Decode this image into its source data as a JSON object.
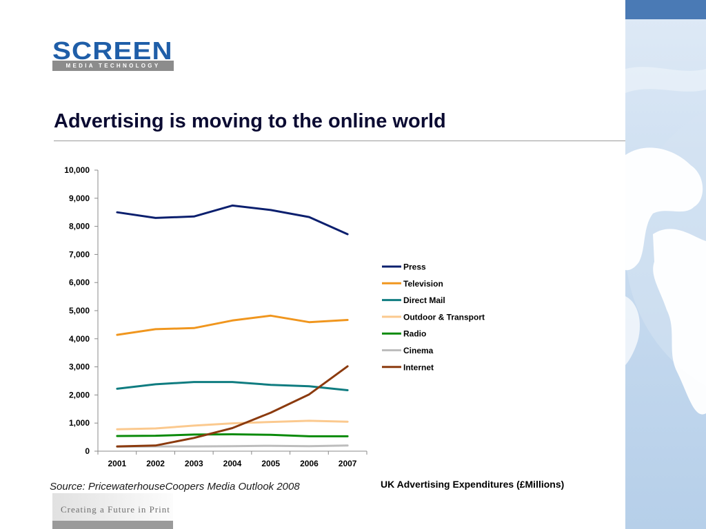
{
  "logo": {
    "brand": "SCREEN",
    "subtitle": "MEDIA TECHNOLOGY"
  },
  "page": {
    "title": "Advertising is moving to the online world",
    "source": "Source: PricewaterhouseCoopers Media Outlook 2008",
    "caption": "UK Advertising Expenditures (£Millions)",
    "tagline": "Creating a Future in Print"
  },
  "colors": {
    "brand": "#1f5ea8",
    "title": "#0b0b32",
    "panel_accent": "#4a7ab5"
  },
  "chart_data": {
    "type": "line",
    "x": [
      "2001",
      "2002",
      "2003",
      "2004",
      "2005",
      "2006",
      "2007"
    ],
    "ylim": [
      0,
      10000
    ],
    "yticks": [
      "0",
      "1,000",
      "2,000",
      "3,000",
      "4,000",
      "5,000",
      "6,000",
      "7,000",
      "8,000",
      "9,000",
      "10,000"
    ],
    "grid": false,
    "legend": "right",
    "series": [
      {
        "name": "Press",
        "color": "#0b1f6e",
        "values": [
          8500,
          8300,
          8350,
          8740,
          8580,
          8330,
          7720
        ]
      },
      {
        "name": "Television",
        "color": "#f0961e",
        "values": [
          4140,
          4340,
          4380,
          4650,
          4820,
          4590,
          4670
        ]
      },
      {
        "name": "Direct Mail",
        "color": "#0f7c80",
        "values": [
          2220,
          2380,
          2460,
          2460,
          2360,
          2310,
          2170
        ]
      },
      {
        "name": "Outdoor & Transport",
        "color": "#fbc98e",
        "values": [
          780,
          810,
          910,
          990,
          1040,
          1080,
          1050
        ]
      },
      {
        "name": "Radio",
        "color": "#0a8a0a",
        "values": [
          540,
          550,
          590,
          600,
          580,
          530,
          530
        ]
      },
      {
        "name": "Cinema",
        "color": "#bdbdbd",
        "values": [
          160,
          170,
          170,
          180,
          190,
          180,
          200
        ]
      },
      {
        "name": "Internet",
        "color": "#8b3a0e",
        "values": [
          170,
          200,
          470,
          820,
          1370,
          2020,
          3020
        ]
      }
    ]
  }
}
